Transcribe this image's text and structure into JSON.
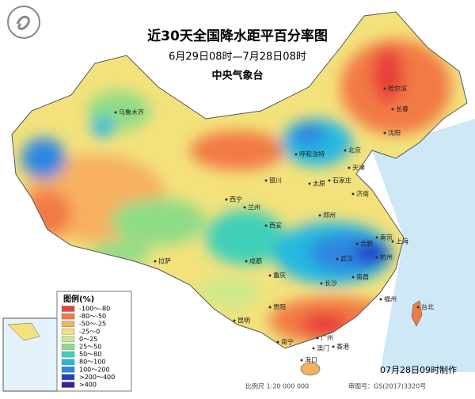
{
  "header": {
    "title": "近30天全国降水距平百分率图",
    "subtitle": "6月29日08时—7月28日08时",
    "agency": "中央气象台"
  },
  "legend": {
    "title": "图例(%)",
    "items": [
      {
        "label": "-100～-80",
        "color": "#e8413a"
      },
      {
        "label": "-80～-50",
        "color": "#f27a45"
      },
      {
        "label": "-50～-25",
        "color": "#f6b061"
      },
      {
        "label": "-25～0",
        "color": "#f3e27c"
      },
      {
        "label": "0～25",
        "color": "#cde98a"
      },
      {
        "label": "25～50",
        "color": "#8fdc86"
      },
      {
        "label": "50～80",
        "color": "#3fd0b8"
      },
      {
        "label": "80～100",
        "color": "#26b8e0"
      },
      {
        "label": "100～200",
        "color": "#2e86e0"
      },
      {
        "label": ">200～400",
        "color": "#2442c8"
      },
      {
        "label": ">400",
        "color": "#3a1fa0"
      }
    ]
  },
  "cities": [
    "乌鲁木齐",
    "哈尔滨",
    "长春",
    "沈阳",
    "呼和浩特",
    "北京",
    "天津",
    "石家庄",
    "太原",
    "济南",
    "银川",
    "西宁",
    "兰州",
    "郑州",
    "西安",
    "合肥",
    "南京",
    "上海",
    "杭州",
    "武汉",
    "成都",
    "重庆",
    "长沙",
    "南昌",
    "福州",
    "台北",
    "贵阳",
    "昆明",
    "拉萨",
    "广州",
    "南宁",
    "香港",
    "澳门",
    "海口"
  ],
  "footer": {
    "made": "07月28日09时制作",
    "scale": "比例尺 1:20 000 000",
    "approval": "审图号：GS(2017)3320号"
  }
}
